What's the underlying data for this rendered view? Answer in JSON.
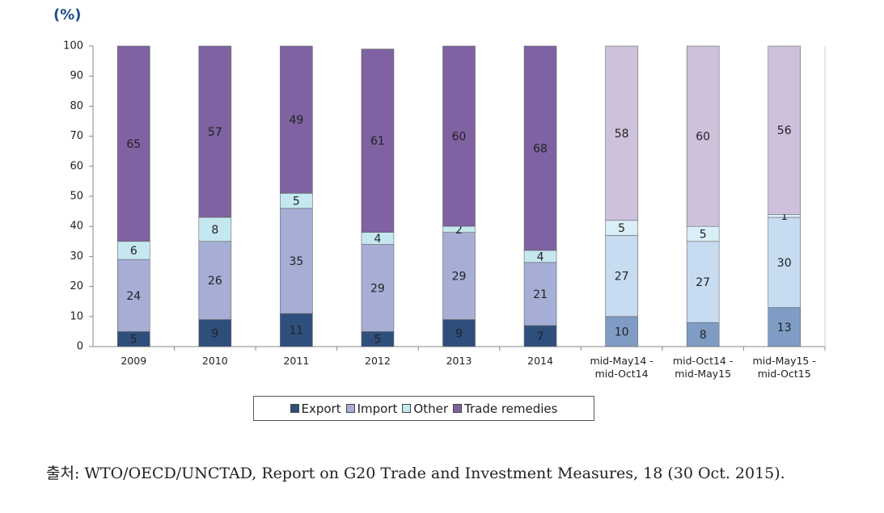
{
  "chart_data": {
    "type": "stacked_bar",
    "y_axis_label": "(%)",
    "categories": [
      "2009",
      "2010",
      "2011",
      "2012",
      "2013",
      "2014",
      "mid-May14 -\nmid-Oct14",
      "mid-Oct14 -\nmid-May15",
      "mid-May15 -\nmid-Oct15"
    ],
    "series": [
      {
        "name": "Export",
        "color": "#2e4f7c",
        "colors": [
          "#2e4f7c",
          "#2e4f7c",
          "#2e4f7c",
          "#2e4f7c",
          "#2e4f7c",
          "#2e4f7c",
          "#7f9cc4",
          "#7f9cc4",
          "#7f9cc4"
        ],
        "values": [
          5,
          9,
          11,
          5,
          9,
          7,
          10,
          8,
          13
        ]
      },
      {
        "name": "Import",
        "color": "#a6aed6",
        "colors": [
          "#a6aed6",
          "#a6aed6",
          "#a6aed6",
          "#a6aed6",
          "#a6aed6",
          "#a6aed6",
          "#c7dbf1",
          "#c7dbf1",
          "#c7dbf1"
        ],
        "values": [
          24,
          26,
          35,
          29,
          29,
          21,
          27,
          27,
          30
        ]
      },
      {
        "name": "Other",
        "color": "#c5e8f0",
        "colors": [
          "#c5e8f0",
          "#c5e8f0",
          "#c5e8f0",
          "#c5e8f0",
          "#c5e8f0",
          "#c5e8f0",
          "#d9eef6",
          "#d9eef6",
          "#d9eef6"
        ],
        "values": [
          6,
          8,
          5,
          4,
          2,
          4,
          5,
          5,
          1
        ]
      },
      {
        "name": "Trade remedies",
        "color": "#7e62a1",
        "colors": [
          "#7e62a1",
          "#7e62a1",
          "#7e62a1",
          "#7e62a1",
          "#7e62a1",
          "#7e62a1",
          "#cdc1dc",
          "#cdc1dc",
          "#cdc1dc"
        ],
        "values": [
          65,
          57,
          49,
          61,
          60,
          68,
          58,
          60,
          56
        ]
      }
    ],
    "ylim": [
      0,
      100
    ],
    "yticks": [
      0,
      10,
      20,
      30,
      40,
      50,
      60,
      70,
      80,
      90,
      100
    ],
    "source": "출처: WTO/OECD/UNCTAD, Report on G20 Trade and Investment Measures, 18 (30 Oct. 2015)."
  }
}
